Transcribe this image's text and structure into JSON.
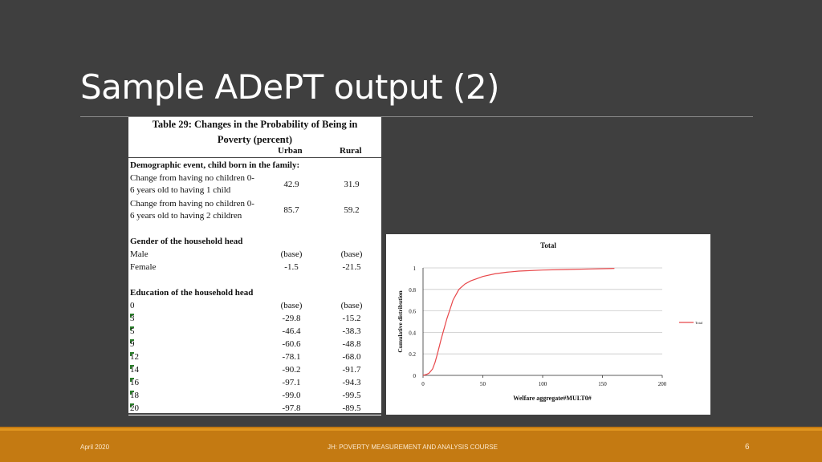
{
  "slide": {
    "title": "Sample ADePT output (2)",
    "footer_left": "April 2020",
    "footer_center": "JH: POVERTY MEASUREMENT AND ANALYSIS COURSE",
    "page_number": "6"
  },
  "table": {
    "caption_line1": "Table 29: Changes in the Probability of Being in",
    "caption_line2": "Poverty (percent)",
    "col_urban": "Urban",
    "col_rural": "Rural",
    "section1": "Demographic event, child born in the family:",
    "row1_label_a": "Change from having no children 0-",
    "row1_label_b": "6 years old to having 1 child",
    "row1_urban": "42.9",
    "row1_rural": "31.9",
    "row2_label_a": "Change from having no children 0-",
    "row2_label_b": "6 years old to having 2 children",
    "row2_urban": "85.7",
    "row2_rural": "59.2",
    "section2": "Gender of the household head",
    "male_label": "Male",
    "male_urban": "(base)",
    "male_rural": "(base)",
    "female_label": "Female",
    "female_urban": "-1.5",
    "female_rural": "-21.5",
    "section3": "Education of the household head",
    "edu_rows": [
      {
        "label": "0",
        "urban": "(base)",
        "rural": "(base)"
      },
      {
        "label": "3",
        "urban": "-29.8",
        "rural": "-15.2"
      },
      {
        "label": "5",
        "urban": "-46.4",
        "rural": "-38.3"
      },
      {
        "label": "9",
        "urban": "-60.6",
        "rural": "-48.8"
      },
      {
        "label": "12",
        "urban": "-78.1",
        "rural": "-68.0"
      },
      {
        "label": "14",
        "urban": "-90.2",
        "rural": "-91.7"
      },
      {
        "label": "16",
        "urban": "-97.1",
        "rural": "-94.3"
      },
      {
        "label": "18",
        "urban": "-99.0",
        "rural": "-99.5"
      },
      {
        "label": "20",
        "urban": "-97.8",
        "rural": "-89.5"
      }
    ]
  },
  "chart_data": {
    "type": "line",
    "title": "Total",
    "xlabel": "Welfare aggregate#MULT0#",
    "ylabel": "Cumulative distribution",
    "xlim": [
      0,
      200
    ],
    "ylim": [
      0,
      1
    ],
    "xticks": [
      "0",
      "50",
      "100",
      "150",
      "200"
    ],
    "yticks": [
      "0",
      "0.2",
      "0.4",
      "0.6",
      "0.8",
      "1"
    ],
    "grid": true,
    "legend_position": "right",
    "series": [
      {
        "name": "Total",
        "color": "#e8474a",
        "x": [
          0,
          3,
          5,
          8,
          10,
          12,
          15,
          18,
          20,
          23,
          25,
          28,
          30,
          35,
          40,
          45,
          50,
          60,
          70,
          80,
          100,
          120,
          140,
          160
        ],
        "y": [
          0,
          0.01,
          0.02,
          0.06,
          0.12,
          0.2,
          0.33,
          0.45,
          0.53,
          0.63,
          0.7,
          0.76,
          0.8,
          0.85,
          0.88,
          0.9,
          0.92,
          0.945,
          0.96,
          0.97,
          0.98,
          0.985,
          0.99,
          0.995
        ]
      }
    ]
  }
}
